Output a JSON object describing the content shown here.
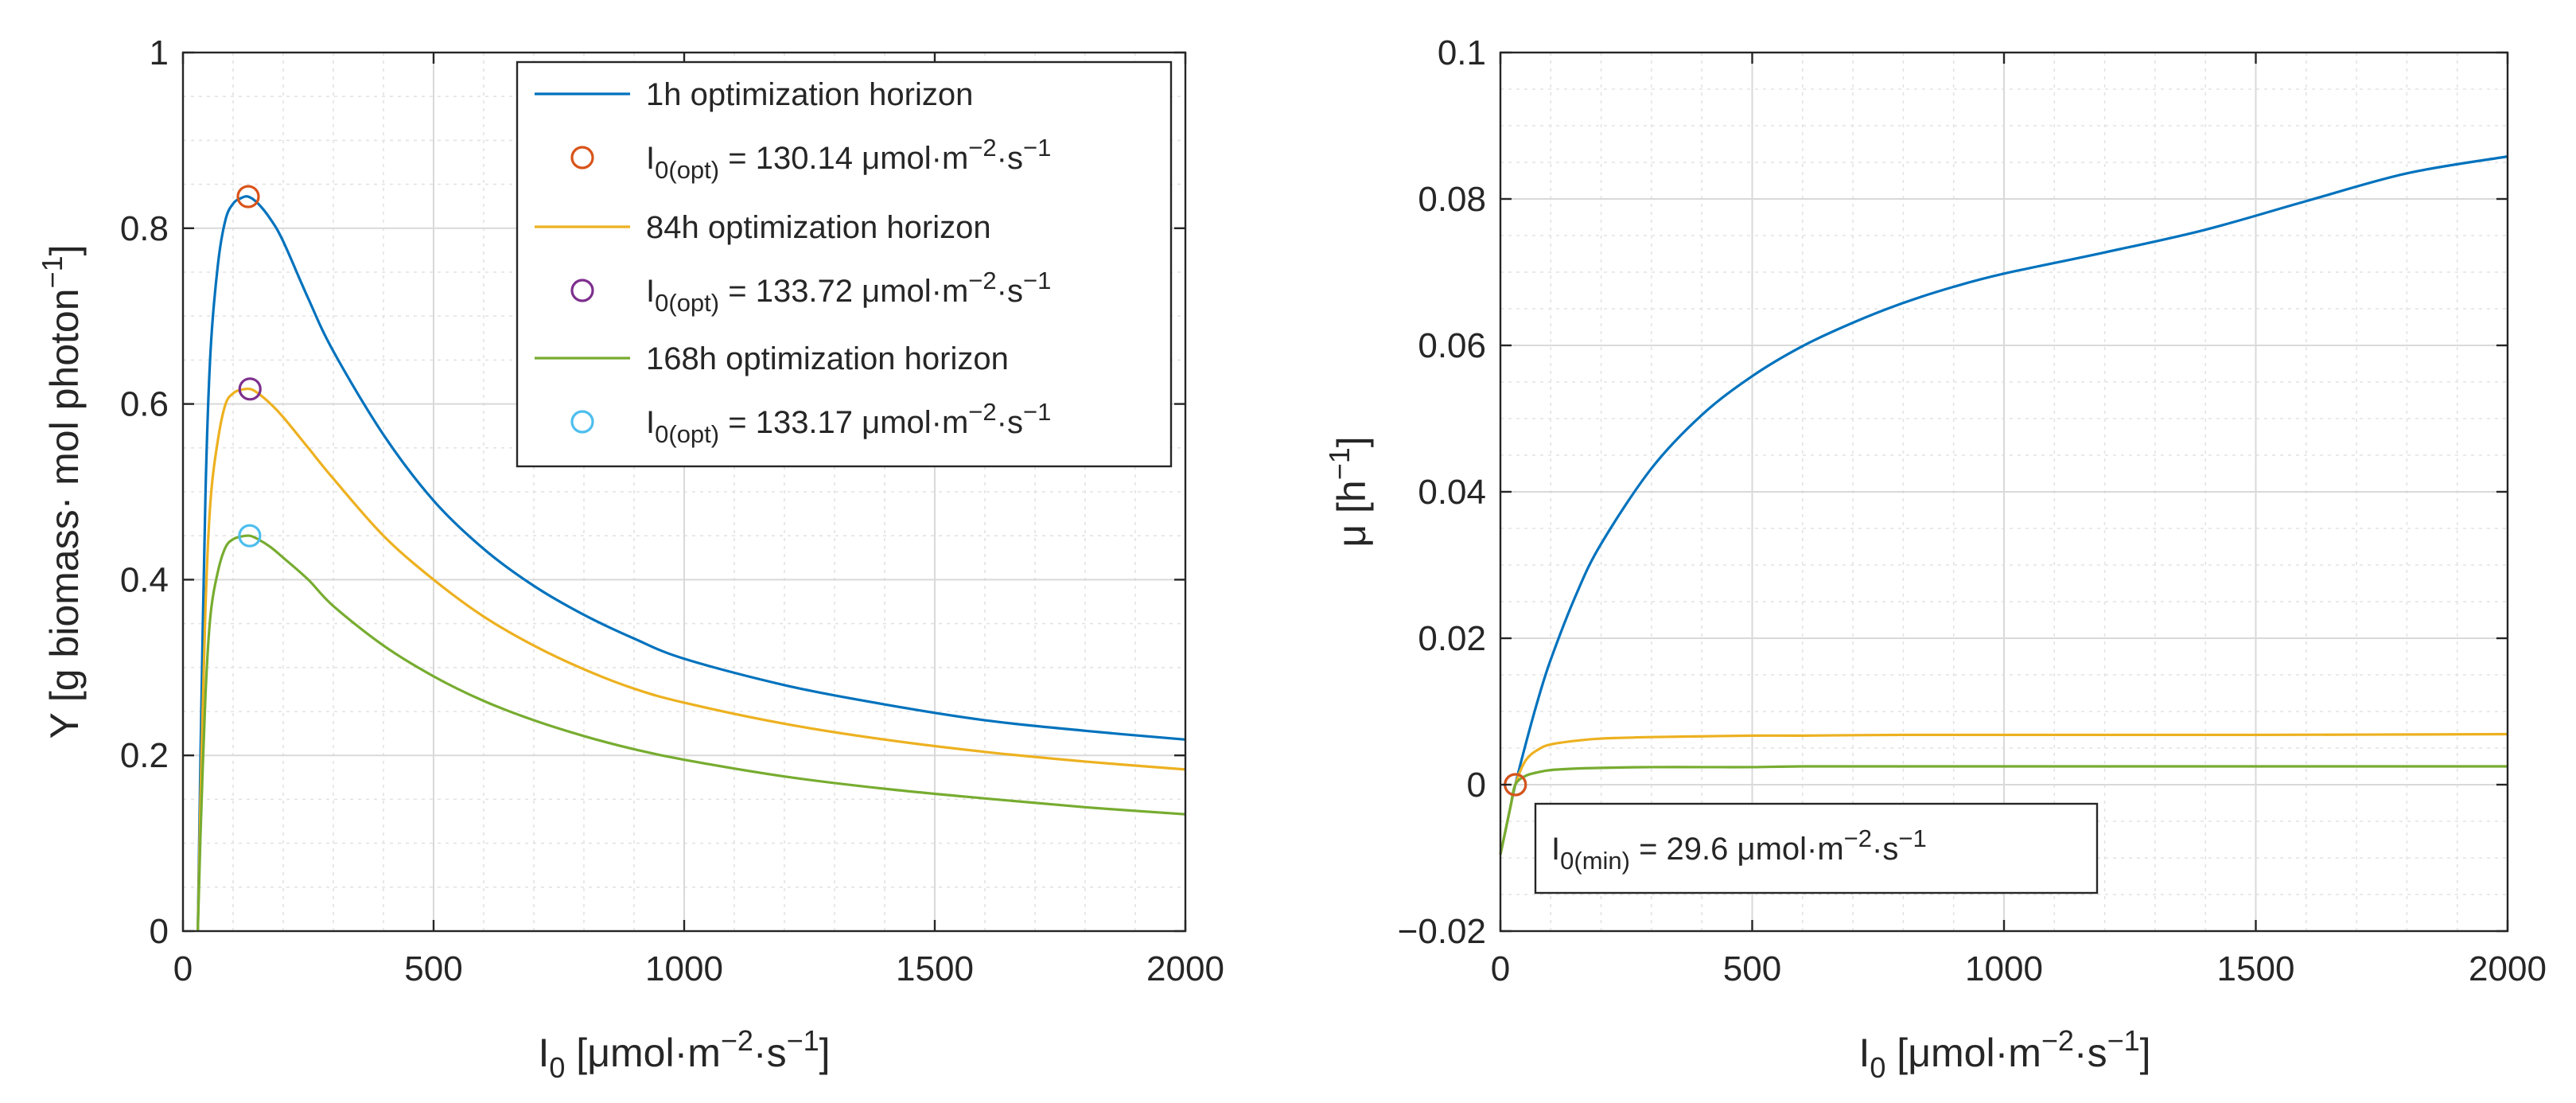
{
  "chart_data": [
    {
      "type": "line",
      "panel": "left",
      "xlabel": {
        "base": "I",
        "sub": "0",
        "rest_pre": " [μmol·m",
        "sup1": "−2",
        "mid": "·s",
        "sup2": "−1",
        "rest_post": "]"
      },
      "ylabel": {
        "text": "Y [g biomass· mol photon",
        "sup": "−1",
        "post": "]"
      },
      "xlim": [
        0,
        2000
      ],
      "ylim": [
        0,
        1
      ],
      "xticks": [
        0,
        500,
        1000,
        1500,
        2000
      ],
      "xtick_labels": [
        "0",
        "500",
        "1000",
        "1500",
        "2000"
      ],
      "yticks": [
        0,
        0.2,
        0.4,
        0.6,
        0.8,
        1
      ],
      "ytick_labels": [
        "0",
        "0.2",
        "0.4",
        "0.6",
        "0.8",
        "1"
      ],
      "grid": true,
      "minor_grid": true,
      "series": [
        {
          "name": "1h optimization horizon",
          "color": "#0072BD",
          "x": [
            29.6,
            35,
            45,
            55,
            70,
            85,
            100,
            115,
            130.14,
            150,
            175,
            200,
            250,
            300,
            400,
            500,
            600,
            700,
            800,
            900,
            1000,
            1200,
            1400,
            1600,
            1800,
            2000
          ],
          "y": [
            0.0,
            0.2,
            0.5,
            0.66,
            0.76,
            0.81,
            0.828,
            0.834,
            0.836,
            0.828,
            0.81,
            0.785,
            0.72,
            0.66,
            0.565,
            0.49,
            0.435,
            0.393,
            0.36,
            0.333,
            0.31,
            0.28,
            0.258,
            0.24,
            0.228,
            0.218
          ]
        },
        {
          "name": "84h optimization horizon",
          "color": "#EDB120",
          "x": [
            29.6,
            35,
            45,
            55,
            70,
            85,
            100,
            115,
            133.72,
            150,
            175,
            200,
            250,
            300,
            400,
            500,
            600,
            700,
            800,
            900,
            1000,
            1200,
            1400,
            1600,
            1800,
            2000
          ],
          "y": [
            0.0,
            0.15,
            0.37,
            0.49,
            0.56,
            0.6,
            0.612,
            0.616,
            0.617,
            0.612,
            0.6,
            0.585,
            0.55,
            0.515,
            0.45,
            0.4,
            0.358,
            0.325,
            0.298,
            0.276,
            0.26,
            0.236,
            0.218,
            0.204,
            0.193,
            0.184
          ]
        },
        {
          "name": "168h optimization horizon",
          "color": "#77AC30",
          "x": [
            29.6,
            35,
            45,
            55,
            70,
            85,
            100,
            115,
            133.17,
            150,
            175,
            200,
            250,
            300,
            400,
            500,
            600,
            700,
            800,
            900,
            1000,
            1200,
            1400,
            1600,
            1800,
            2000
          ],
          "y": [
            0.0,
            0.11,
            0.27,
            0.36,
            0.41,
            0.437,
            0.446,
            0.449,
            0.45,
            0.446,
            0.437,
            0.425,
            0.4,
            0.37,
            0.325,
            0.29,
            0.262,
            0.24,
            0.222,
            0.207,
            0.195,
            0.176,
            0.162,
            0.151,
            0.141,
            0.133
          ]
        }
      ],
      "optima": [
        {
          "series": "1h optimization horizon",
          "x": 130.14,
          "y": 0.836,
          "color": "#D95319",
          "label_base": "I",
          "label_sub": "0(opt)",
          "label_value": " = 130.14 μmol·m",
          "label_sup1": "−2",
          "label_mid": "·s",
          "label_sup2": "−1"
        },
        {
          "series": "84h optimization horizon",
          "x": 133.72,
          "y": 0.617,
          "color": "#7E2F8E",
          "label_base": "I",
          "label_sub": "0(opt)",
          "label_value": " = 133.72 μmol·m",
          "label_sup1": "−2",
          "label_mid": "·s",
          "label_sup2": "−1"
        },
        {
          "series": "168h optimization horizon",
          "x": 133.17,
          "y": 0.45,
          "color": "#4DBEEE",
          "label_base": "I",
          "label_sub": "0(opt)",
          "label_value": " = 133.17 μmol·m",
          "label_sup1": "−2",
          "label_mid": "·s",
          "label_sup2": "−1"
        }
      ],
      "legend_placement": "top-right"
    },
    {
      "type": "line",
      "panel": "right",
      "xlabel": {
        "base": "I",
        "sub": "0",
        "rest_pre": " [μmol·m",
        "sup1": "−2",
        "mid": "·s",
        "sup2": "−1",
        "rest_post": "]"
      },
      "ylabel": {
        "text": "μ [h",
        "sup": "−1",
        "post": "]"
      },
      "xlim": [
        0,
        2000
      ],
      "ylim": [
        -0.02,
        0.1
      ],
      "xticks": [
        0,
        500,
        1000,
        1500,
        2000
      ],
      "xtick_labels": [
        "0",
        "500",
        "1000",
        "1500",
        "2000"
      ],
      "yticks": [
        -0.02,
        0,
        0.02,
        0.04,
        0.06,
        0.08,
        0.1
      ],
      "ytick_labels": [
        "−0.02",
        "0",
        "0.02",
        "0.04",
        "0.06",
        "0.08",
        "0.1"
      ],
      "grid": true,
      "minor_grid": true,
      "series": [
        {
          "name": "1h optimization horizon",
          "color": "#0072BD",
          "x": [
            0,
            10,
            20,
            29.6,
            50,
            75,
            100,
            150,
            200,
            300,
            400,
            500,
            600,
            700,
            800,
            900,
            1000,
            1200,
            1400,
            1600,
            1800,
            2000
          ],
          "y": [
            -0.0095,
            -0.0063,
            -0.003,
            0.0,
            0.0055,
            0.0117,
            0.0171,
            0.0259,
            0.0329,
            0.0432,
            0.0505,
            0.0558,
            0.0599,
            0.0631,
            0.0658,
            0.068,
            0.0698,
            0.0727,
            0.0758,
            0.0797,
            0.0835,
            0.0858
          ]
        },
        {
          "name": "84h optimization horizon",
          "color": "#EDB120",
          "x": [
            0,
            10,
            20,
            29.6,
            50,
            75,
            100,
            150,
            200,
            300,
            400,
            500,
            600,
            800,
            1000,
            1200,
            1500,
            2000
          ],
          "y": [
            -0.0095,
            -0.0063,
            -0.003,
            0.0,
            0.0033,
            0.0048,
            0.0055,
            0.006,
            0.0063,
            0.0065,
            0.0066,
            0.0067,
            0.0067,
            0.0068,
            0.0068,
            0.0068,
            0.0068,
            0.0069
          ]
        },
        {
          "name": "168h optimization horizon",
          "color": "#77AC30",
          "x": [
            0,
            10,
            20,
            29.6,
            50,
            75,
            100,
            150,
            200,
            300,
            400,
            500,
            600,
            800,
            1000,
            1200,
            1500,
            2000
          ],
          "y": [
            -0.0095,
            -0.0063,
            -0.003,
            0.0,
            0.0012,
            0.0017,
            0.002,
            0.0022,
            0.0023,
            0.0024,
            0.0024,
            0.0024,
            0.0025,
            0.0025,
            0.0025,
            0.0025,
            0.0025,
            0.0025
          ]
        }
      ],
      "markers": [
        {
          "x": 29.6,
          "y": 0.0,
          "color": "#4DBEEE"
        },
        {
          "x": 29.6,
          "y": 0.0,
          "color": "#D95319"
        }
      ],
      "annotation": {
        "base": "I",
        "sub": "0(min)",
        "value": " = 29.6 μmol·m",
        "sup1": "−2",
        "mid": "·s",
        "sup2": "−1"
      }
    }
  ]
}
